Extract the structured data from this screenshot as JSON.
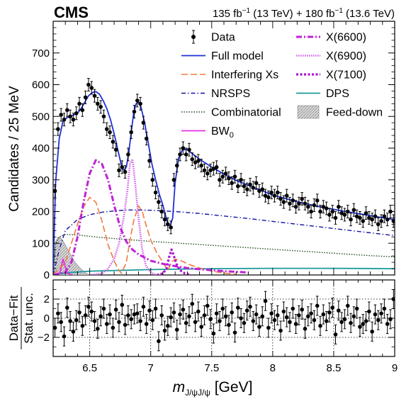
{
  "header": {
    "experiment": "CMS",
    "lumi_1": "135 fb",
    "lumi_1_sup": "−1",
    "lumi_1_energy": " (13 TeV) + 180 fb",
    "lumi_2_sup": "−1",
    "lumi_2_energy": " (13.6 TeV)"
  },
  "chart_data": {
    "type": "scatter",
    "xlabel": "m",
    "xlabel_sub": "J/ψJ/ψ",
    "xlabel_unit": " [GeV]",
    "xlim": [
      6.2,
      9.0
    ],
    "x_ticks": [
      "6.5",
      "7",
      "7.5",
      "8",
      "8.5",
      "9"
    ],
    "top_panel": {
      "ylabel": "Candidates / 25 MeV",
      "ylim": [
        0,
        800
      ],
      "y_ticks": [
        "0",
        "100",
        "200",
        "300",
        "400",
        "500",
        "600",
        "700"
      ]
    },
    "bottom_panel": {
      "ylabel_line1": "Data−Fit",
      "ylabel_line2": "Stat. unc.",
      "ylim": [
        -4,
        4
      ],
      "y_ticks": [
        "−2",
        "0",
        "2"
      ],
      "gridlines_y": [
        -2,
        0,
        2
      ],
      "gridlines_x": [
        6.5,
        7,
        7.5,
        8,
        8.5
      ]
    },
    "legend": {
      "placement": "top-right",
      "left_column": [
        {
          "key": "data",
          "label": "Data",
          "style": "marker",
          "color": "#000000"
        },
        {
          "key": "full_model",
          "label": "Full model",
          "style": "solid",
          "color": "#1f2fd6"
        },
        {
          "key": "interfering",
          "label": "Interfering Xs",
          "style": "dashed",
          "color": "#f07a3e"
        },
        {
          "key": "nrsps",
          "label": "NRSPS",
          "style": "dashdot",
          "color": "#1414a0"
        },
        {
          "key": "combinatorial",
          "label": "Combinatorial",
          "style": "dotted",
          "color": "#1e4a1e"
        },
        {
          "key": "bw0",
          "label": "BW",
          "label_sub": "0",
          "style": "solid",
          "color": "#e62ee6"
        }
      ],
      "right_column": [
        {
          "key": "x6600",
          "label": "X(6600)",
          "style": "dashdot-thick",
          "color": "#c020d8"
        },
        {
          "key": "x6900",
          "label": "X(6900)",
          "style": "dotted-thick",
          "color": "#d060e8"
        },
        {
          "key": "x7100",
          "label": "X(7100)",
          "style": "dotted-bold",
          "color": "#b010d0"
        },
        {
          "key": "dps",
          "label": "DPS",
          "style": "solid",
          "color": "#1a9a9a"
        },
        {
          "key": "feed_down",
          "label": "Feed-down",
          "style": "hatch",
          "color": "#b0b0b0"
        }
      ]
    },
    "series": [
      {
        "name": "Full model",
        "x": [
          6.2,
          6.22,
          6.25,
          6.28,
          6.31,
          6.34,
          6.37,
          6.4,
          6.43,
          6.46,
          6.49,
          6.52,
          6.55,
          6.58,
          6.61,
          6.64,
          6.67,
          6.7,
          6.73,
          6.76,
          6.78,
          6.8,
          6.82,
          6.84,
          6.86,
          6.88,
          6.9,
          6.92,
          6.95,
          6.98,
          7.01,
          7.04,
          7.07,
          7.1,
          7.12,
          7.14,
          7.16,
          7.18,
          7.2,
          7.23,
          7.26,
          7.3,
          7.35,
          7.4,
          7.5,
          7.6,
          7.7,
          7.8,
          7.9,
          8.0,
          8.2,
          8.4,
          8.6,
          8.8,
          9.0
        ],
        "y": [
          5,
          290,
          430,
          485,
          495,
          500,
          505,
          510,
          525,
          545,
          565,
          575,
          578,
          570,
          550,
          525,
          490,
          445,
          395,
          345,
          330,
          340,
          385,
          450,
          510,
          540,
          545,
          530,
          480,
          415,
          350,
          300,
          255,
          220,
          190,
          160,
          155,
          180,
          290,
          370,
          395,
          395,
          380,
          365,
          340,
          318,
          298,
          283,
          268,
          252,
          231,
          214,
          200,
          187,
          174
        ]
      },
      {
        "name": "Interfering Xs",
        "x": [
          6.2,
          6.3,
          6.4,
          6.45,
          6.5,
          6.55,
          6.6,
          6.65,
          6.7,
          6.73,
          6.76,
          6.8,
          6.83,
          6.86,
          6.9,
          6.93,
          6.96,
          7.0,
          7.05,
          7.1,
          7.14,
          7.17,
          7.2,
          7.25,
          7.3,
          7.4,
          7.5,
          7.6,
          7.7
        ],
        "y": [
          0,
          40,
          160,
          215,
          245,
          230,
          170,
          95,
          45,
          20,
          5,
          40,
          110,
          170,
          218,
          200,
          160,
          110,
          70,
          40,
          15,
          40,
          50,
          45,
          35,
          22,
          12,
          6,
          2
        ]
      },
      {
        "name": "NRSPS",
        "x": [
          6.2,
          6.25,
          6.3,
          6.4,
          6.5,
          6.6,
          6.7,
          6.8,
          6.9,
          7.0,
          7.2,
          7.4,
          7.6,
          7.8,
          8.0,
          8.2,
          8.4,
          8.6,
          8.8,
          9.0
        ],
        "y": [
          0,
          80,
          140,
          175,
          190,
          198,
          202,
          205,
          205,
          204,
          200,
          194,
          186,
          178,
          169,
          160,
          151,
          142,
          133,
          124
        ]
      },
      {
        "name": "Combinatorial",
        "x": [
          6.2,
          6.22,
          6.25,
          6.3,
          6.4,
          6.5,
          6.6,
          6.8,
          7.0,
          7.2,
          7.4,
          7.6,
          7.8,
          8.0,
          8.2,
          8.4,
          8.6,
          8.8,
          9.0
        ],
        "y": [
          0,
          95,
          120,
          128,
          126,
          122,
          118,
          112,
          106,
          101,
          96,
          91,
          86,
          81,
          76,
          71,
          66,
          61,
          57
        ]
      },
      {
        "name": "BW₀",
        "x": [
          6.2,
          6.24,
          6.26,
          6.27,
          6.28,
          6.29,
          6.3,
          6.31,
          6.32,
          6.34,
          6.36
        ],
        "y": [
          0,
          3,
          12,
          30,
          50,
          40,
          25,
          12,
          5,
          2,
          0
        ]
      },
      {
        "name": "X(6600)",
        "x": [
          6.2,
          6.3,
          6.35,
          6.4,
          6.45,
          6.5,
          6.55,
          6.6,
          6.65,
          6.7,
          6.75,
          6.8,
          6.85,
          6.9,
          7.0,
          7.1,
          7.2,
          7.3,
          7.4,
          7.6,
          7.8
        ],
        "y": [
          0,
          8,
          40,
          120,
          230,
          320,
          362,
          350,
          300,
          220,
          150,
          105,
          80,
          65,
          45,
          35,
          28,
          22,
          18,
          12,
          8
        ]
      },
      {
        "name": "X(6900)",
        "x": [
          6.5,
          6.6,
          6.65,
          6.7,
          6.74,
          6.78,
          6.81,
          6.83,
          6.85,
          6.87,
          6.9,
          6.93,
          6.96,
          7.0,
          7.05
        ],
        "y": [
          0,
          5,
          20,
          50,
          100,
          185,
          270,
          350,
          365,
          300,
          180,
          80,
          30,
          8,
          0
        ]
      },
      {
        "name": "X(7100)",
        "x": [
          7.05,
          7.1,
          7.13,
          7.15,
          7.17,
          7.19,
          7.21,
          7.24,
          7.28,
          7.33
        ],
        "y": [
          0,
          5,
          20,
          55,
          80,
          60,
          35,
          15,
          5,
          0
        ]
      },
      {
        "name": "DPS",
        "x": [
          6.2,
          6.22,
          6.25,
          6.35,
          6.5,
          7.0,
          7.5,
          8.0,
          8.5,
          9.0
        ],
        "y": [
          0,
          2,
          5,
          8,
          12,
          17,
          20,
          21,
          21,
          20
        ]
      },
      {
        "name": "Feed-down",
        "x": [
          6.2,
          6.22,
          6.24,
          6.26,
          6.28,
          6.3,
          6.32,
          6.35,
          6.38,
          6.42,
          6.46,
          6.5
        ],
        "y": [
          0,
          105,
          120,
          118,
          108,
          95,
          80,
          60,
          40,
          22,
          8,
          0
        ]
      }
    ],
    "data_points": {
      "x": [
        6.215,
        6.24,
        6.265,
        6.29,
        6.315,
        6.34,
        6.365,
        6.39,
        6.415,
        6.44,
        6.465,
        6.49,
        6.515,
        6.54,
        6.565,
        6.59,
        6.615,
        6.64,
        6.665,
        6.69,
        6.715,
        6.74,
        6.765,
        6.79,
        6.815,
        6.84,
        6.865,
        6.89,
        6.915,
        6.94,
        6.965,
        6.99,
        7.015,
        7.04,
        7.065,
        7.09,
        7.115,
        7.14,
        7.165,
        7.19,
        7.215,
        7.24,
        7.265,
        7.29,
        7.315,
        7.34,
        7.365,
        7.39,
        7.415,
        7.44,
        7.465,
        7.49,
        7.515,
        7.54,
        7.565,
        7.59,
        7.615,
        7.64,
        7.665,
        7.69,
        7.715,
        7.74,
        7.765,
        7.79,
        7.815,
        7.84,
        7.865,
        7.89,
        7.915,
        7.94,
        7.965,
        7.99,
        8.015,
        8.04,
        8.065,
        8.09,
        8.115,
        8.14,
        8.165,
        8.19,
        8.215,
        8.24,
        8.265,
        8.29,
        8.315,
        8.34,
        8.365,
        8.39,
        8.415,
        8.44,
        8.465,
        8.49,
        8.515,
        8.54,
        8.565,
        8.59,
        8.615,
        8.64,
        8.665,
        8.69,
        8.715,
        8.74,
        8.765,
        8.79,
        8.815,
        8.84,
        8.865,
        8.89,
        8.915,
        8.94,
        8.965,
        8.99
      ],
      "y": [
        265,
        460,
        505,
        490,
        520,
        500,
        490,
        510,
        540,
        520,
        560,
        600,
        590,
        565,
        540,
        530,
        500,
        460,
        450,
        420,
        395,
        330,
        340,
        325,
        380,
        450,
        515,
        550,
        540,
        480,
        430,
        360,
        300,
        260,
        230,
        200,
        175,
        160,
        150,
        300,
        345,
        380,
        400,
        380,
        395,
        365,
        355,
        360,
        345,
        330,
        320,
        330,
        335,
        340,
        300,
        310,
        320,
        305,
        290,
        310,
        280,
        300,
        280,
        270,
        285,
        275,
        290,
        265,
        270,
        250,
        245,
        260,
        250,
        260,
        240,
        230,
        250,
        225,
        235,
        215,
        225,
        240,
        225,
        215,
        200,
        220,
        235,
        200,
        215,
        210,
        190,
        200,
        180,
        215,
        195,
        190,
        200,
        175,
        205,
        185,
        180,
        170,
        195,
        180,
        175,
        185,
        160,
        170,
        185,
        175,
        200,
        170
      ],
      "err": 20
    },
    "residuals": {
      "x": [
        6.215,
        6.24,
        6.265,
        6.29,
        6.315,
        6.34,
        6.365,
        6.39,
        6.415,
        6.44,
        6.465,
        6.49,
        6.515,
        6.54,
        6.565,
        6.59,
        6.615,
        6.64,
        6.665,
        6.69,
        6.715,
        6.74,
        6.765,
        6.79,
        6.815,
        6.84,
        6.865,
        6.89,
        6.915,
        6.94,
        6.965,
        6.99,
        7.015,
        7.04,
        7.065,
        7.09,
        7.115,
        7.14,
        7.165,
        7.19,
        7.215,
        7.24,
        7.265,
        7.29,
        7.315,
        7.34,
        7.365,
        7.39,
        7.415,
        7.44,
        7.465,
        7.49,
        7.515,
        7.54,
        7.565,
        7.59,
        7.615,
        7.64,
        7.665,
        7.69,
        7.715,
        7.74,
        7.765,
        7.79,
        7.815,
        7.84,
        7.865,
        7.89,
        7.915,
        7.94,
        7.965,
        7.99,
        8.015,
        8.04,
        8.065,
        8.09,
        8.115,
        8.14,
        8.165,
        8.19,
        8.215,
        8.24,
        8.265,
        8.29,
        8.315,
        8.34,
        8.365,
        8.39,
        8.415,
        8.44,
        8.465,
        8.49,
        8.515,
        8.54,
        8.565,
        8.59,
        8.615,
        8.64,
        8.665,
        8.69,
        8.715,
        8.74,
        8.765,
        8.79,
        8.815,
        8.84,
        8.865,
        8.89,
        8.915,
        8.94,
        8.965,
        8.99
      ],
      "y": [
        -1.0,
        0.5,
        -0.4,
        -1.9,
        1.1,
        -0.3,
        -1.4,
        -0.2,
        0.6,
        -0.8,
        0.3,
        1.2,
        0.7,
        -0.3,
        -1.1,
        0.2,
        1.0,
        -0.6,
        0.4,
        -1.0,
        0.9,
        -0.4,
        1.4,
        -0.7,
        0.3,
        -0.1,
        0.4,
        0.5,
        -0.3,
        1.2,
        -0.6,
        0.8,
        -0.2,
        1.0,
        -2.4,
        0.3,
        -1.3,
        -0.8,
        0.1,
        0.6,
        -1.2,
        0.4,
        0.9,
        -0.5,
        0.2,
        1.5,
        -0.4,
        0.7,
        -0.9,
        0.3,
        1.3,
        -0.1,
        -1.6,
        0.5,
        -0.3,
        1.0,
        0.2,
        -0.7,
        0.6,
        -1.5,
        1.1,
        0.0,
        -0.5,
        0.8,
        1.2,
        -0.3,
        0.4,
        -0.9,
        0.2,
        1.8,
        -1.0,
        0.5,
        -0.2,
        0.3,
        -1.3,
        0.7,
        0.1,
        -0.4,
        1.0,
        -0.6,
        0.3,
        0.9,
        -1.1,
        0.2,
        0.5,
        -0.2,
        1.3,
        -0.8,
        0.4,
        -0.3,
        0.6,
        1.1,
        -1.7,
        0.8,
        -0.4,
        -0.1,
        1.3,
        -0.5,
        0.2,
        1.0,
        -0.9,
        -0.6,
        -0.3,
        0.7,
        -1.4,
        0.4,
        -0.2,
        0.5,
        1.0,
        -0.6,
        -0.1,
        2.0
      ],
      "err": 1.0
    }
  }
}
